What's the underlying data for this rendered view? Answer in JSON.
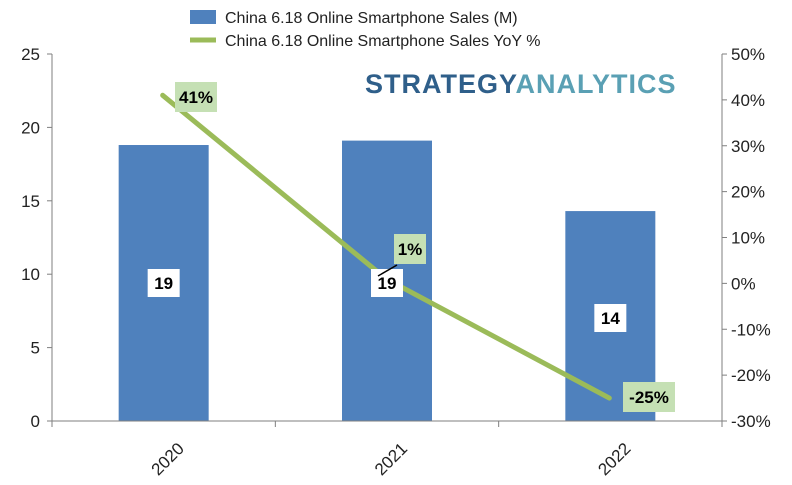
{
  "chart_data": {
    "type": "bar+line",
    "categories": [
      "2020",
      "2021",
      "2022"
    ],
    "series": [
      {
        "name": "China 6.18 Online Smartphone Sales (M)",
        "type": "bar",
        "axis": "left",
        "color": "#4f81bd",
        "values": [
          18.8,
          19.1,
          14.3
        ],
        "labels": [
          "19",
          "19",
          "14"
        ]
      },
      {
        "name": "China 6.18 Online Smartphone Sales YoY %",
        "type": "line",
        "axis": "right",
        "color": "#9bbb59",
        "values": [
          41,
          1,
          -25
        ],
        "labels": [
          "41%",
          "1%",
          "-25%"
        ]
      }
    ],
    "left_axis": {
      "min": 0,
      "max": 25,
      "ticks": [
        "0",
        "5",
        "10",
        "15",
        "20",
        "25"
      ]
    },
    "right_axis": {
      "min": -30,
      "max": 50,
      "ticks": [
        "-30%",
        "-20%",
        "-10%",
        "0%",
        "10%",
        "20%",
        "30%",
        "40%",
        "50%"
      ]
    },
    "grid": false,
    "legend_position": "top",
    "watermark": {
      "part1": "STRATEGY",
      "part2": "ANALYTICS",
      "color1": "#2f5f8a",
      "color2": "#5aa0b4"
    },
    "label_bg": "#c5e0b4"
  }
}
